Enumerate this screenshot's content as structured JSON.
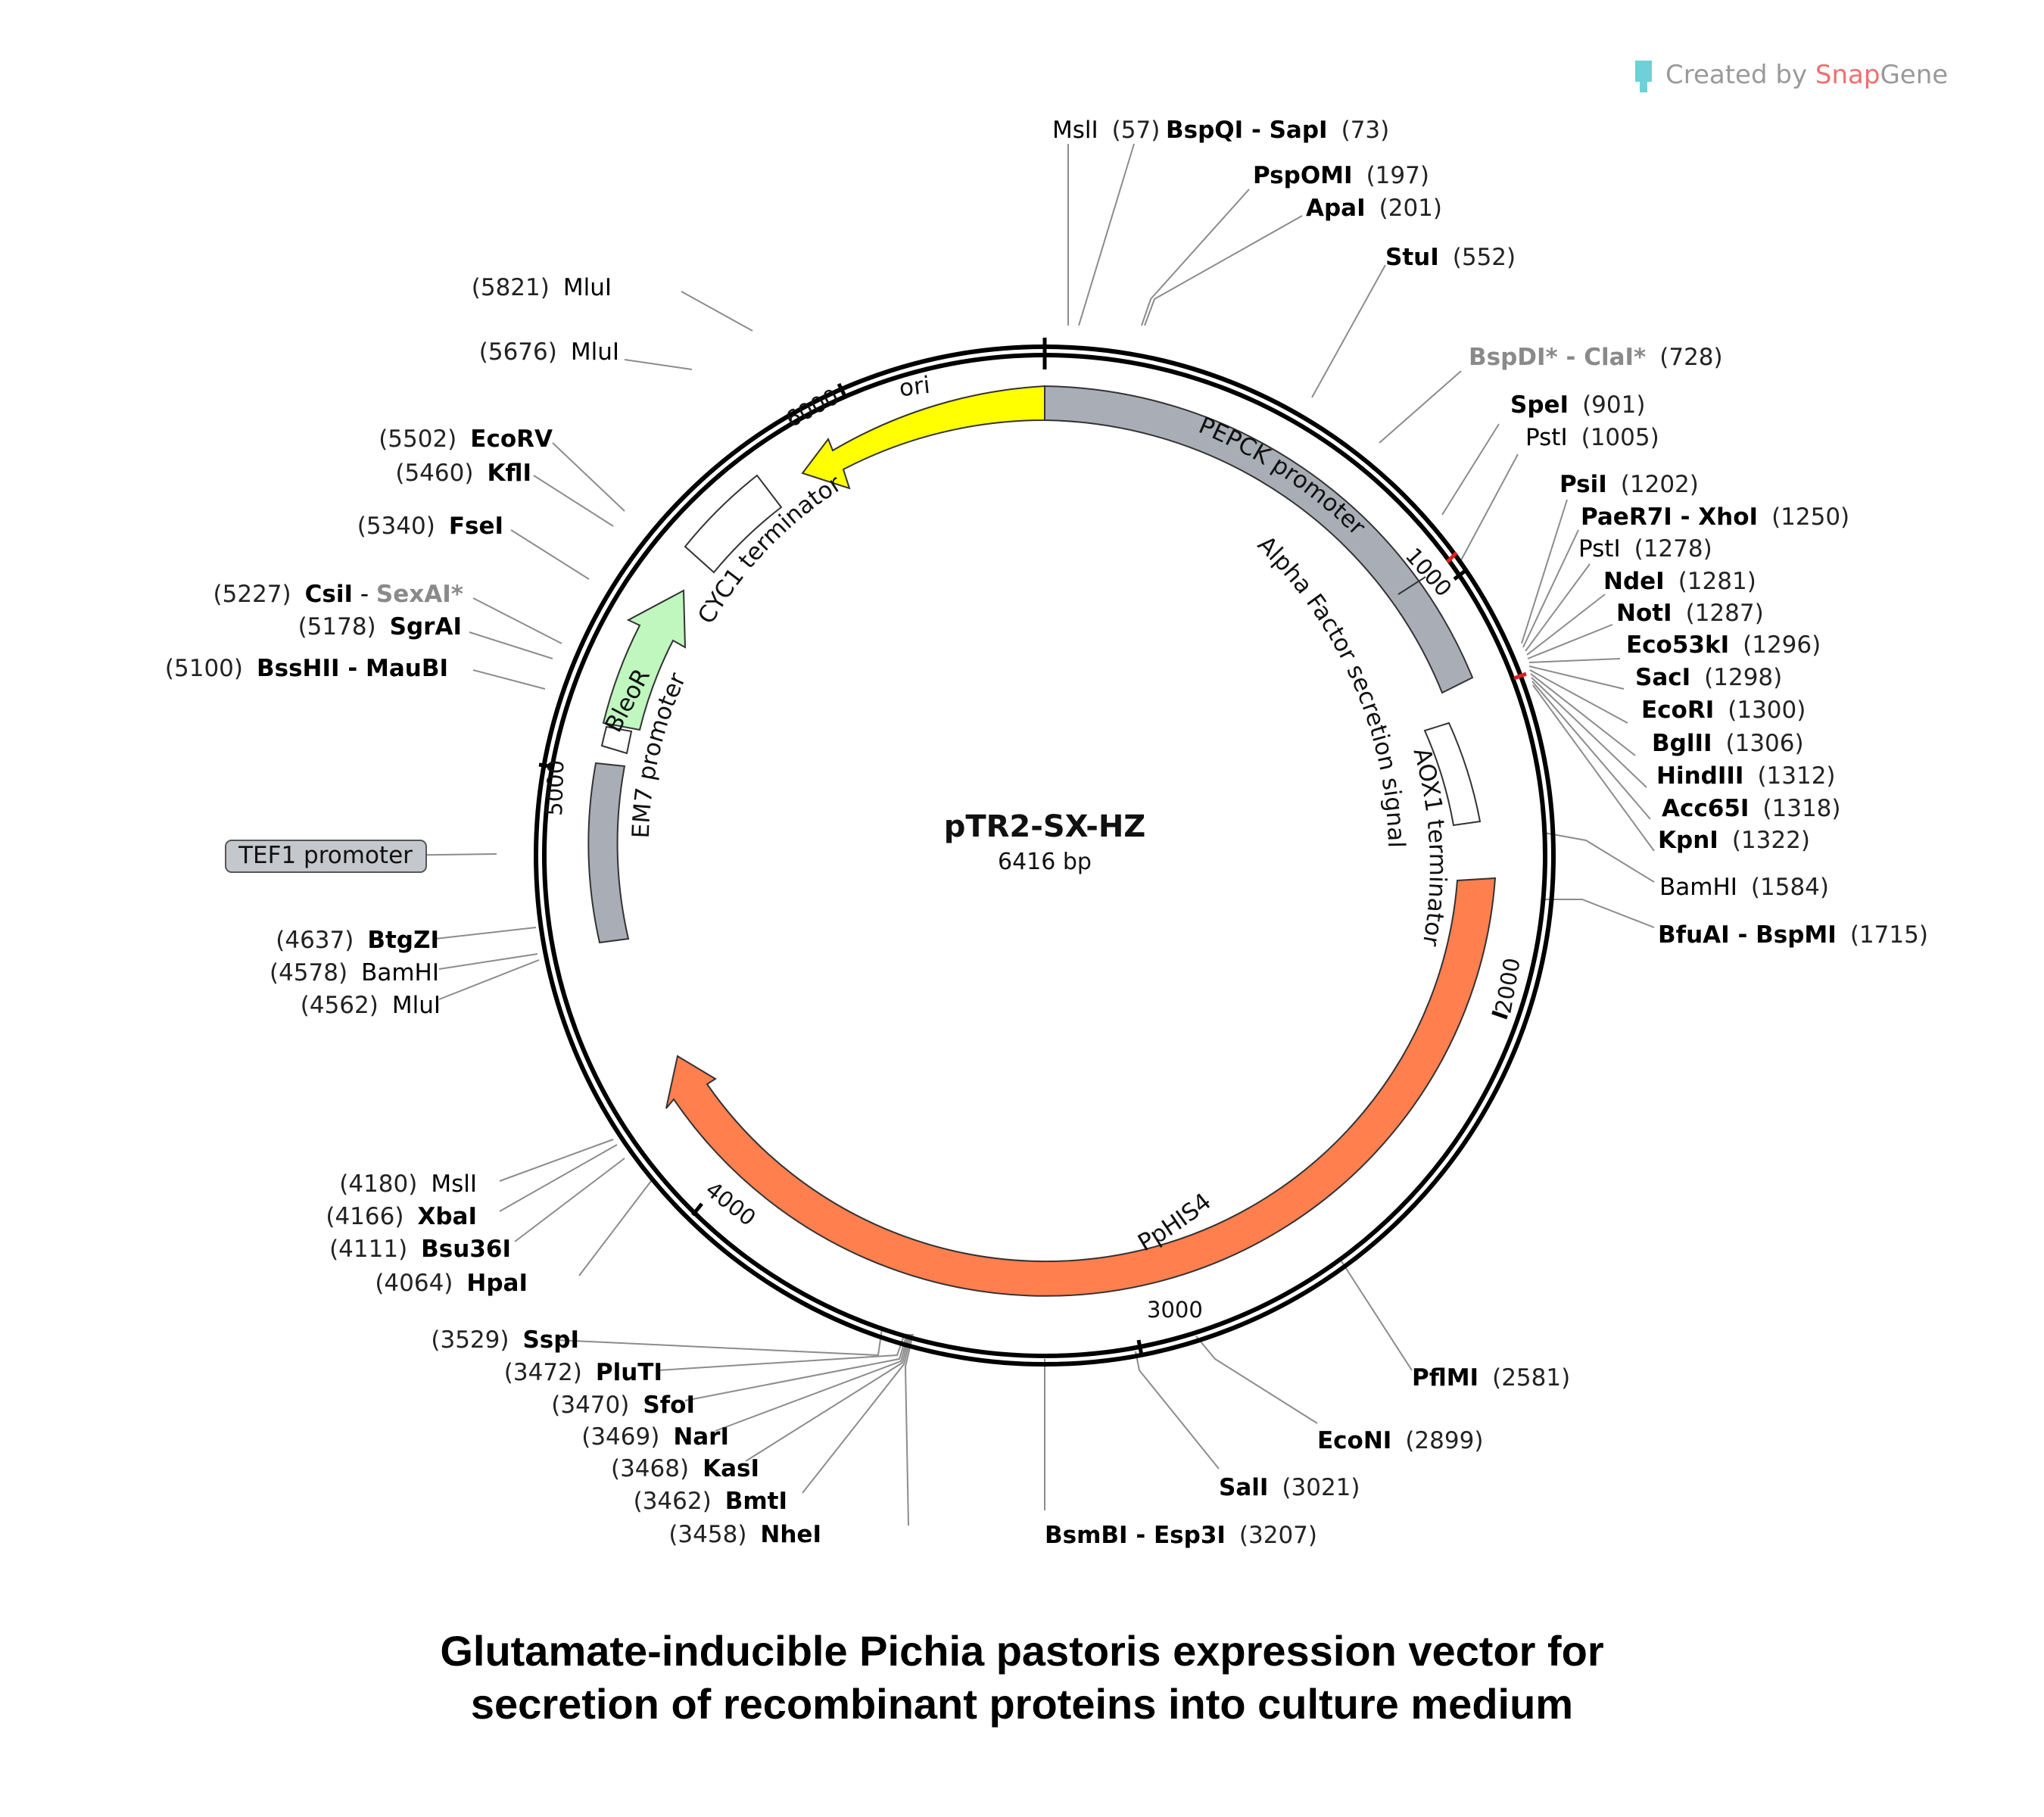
{
  "plasmid": {
    "name": "pTR2-SX-HZ",
    "size_label": "6416 bp",
    "length": 6416
  },
  "brand": {
    "prefix": "Created by ",
    "snap": "Snap",
    "gene": "Gene"
  },
  "caption": {
    "line1": "Glutamate-inducible Pichia pastoris expression vector for",
    "line2": "secretion of recombinant proteins into culture medium"
  },
  "ticks": [
    "1000",
    "2000",
    "3000",
    "4000",
    "5000",
    "6000"
  ],
  "features": {
    "ori": "ori",
    "pepck": "PEPCK promoter",
    "alpha": "Alpha Factor secretion signal",
    "aox1": "AOX1 terminator",
    "his4": "PpHIS4",
    "tef1": "TEF1 promoter",
    "em7": "EM7 promoter",
    "bleor": "BleoR",
    "cyc1": "CYC1 terminator"
  },
  "sites_right": [
    {
      "name": "MslI",
      "pos": "(57)",
      "bold": false
    },
    {
      "name": "BspQI - SapI",
      "pos": "(73)",
      "bold": true
    },
    {
      "name": "PspOMI",
      "pos": "(197)",
      "bold": true
    },
    {
      "name": "ApaI",
      "pos": "(201)",
      "bold": true
    },
    {
      "name": "StuI",
      "pos": "(552)",
      "bold": true
    },
    {
      "name": "BspDI* - ClaI*",
      "pos": "(728)",
      "bold": true,
      "grey": true
    },
    {
      "name": "SpeI",
      "pos": "(901)",
      "bold": true
    },
    {
      "name": "PstI",
      "pos": "(1005)",
      "bold": false
    },
    {
      "name": "PsiI",
      "pos": "(1202)",
      "bold": true
    },
    {
      "name": "PaeR7I - XhoI",
      "pos": "(1250)",
      "bold": true
    },
    {
      "name": "PstI",
      "pos": "(1278)",
      "bold": false
    },
    {
      "name": "NdeI",
      "pos": "(1281)",
      "bold": true
    },
    {
      "name": "NotI",
      "pos": "(1287)",
      "bold": true
    },
    {
      "name": "Eco53kI",
      "pos": "(1296)",
      "bold": true
    },
    {
      "name": "SacI",
      "pos": "(1298)",
      "bold": true
    },
    {
      "name": "EcoRI",
      "pos": "(1300)",
      "bold": true
    },
    {
      "name": "BglII",
      "pos": "(1306)",
      "bold": true
    },
    {
      "name": "HindIII",
      "pos": "(1312)",
      "bold": true
    },
    {
      "name": "Acc65I",
      "pos": "(1318)",
      "bold": true
    },
    {
      "name": "KpnI",
      "pos": "(1322)",
      "bold": true
    },
    {
      "name": "BamHI",
      "pos": "(1584)",
      "bold": false
    },
    {
      "name": "BfuAI - BspMI",
      "pos": "(1715)",
      "bold": true
    },
    {
      "name": "PflMI",
      "pos": "(2581)",
      "bold": true
    },
    {
      "name": "EcoNI",
      "pos": "(2899)",
      "bold": true
    },
    {
      "name": "SalI",
      "pos": "(3021)",
      "bold": true
    },
    {
      "name": "BsmBI - Esp3I",
      "pos": "(3207)",
      "bold": true
    }
  ],
  "sites_left": [
    {
      "name": "MluI",
      "pos": "(5821)",
      "bold": false
    },
    {
      "name": "MluI",
      "pos": "(5676)",
      "bold": false
    },
    {
      "name": "EcoRV",
      "pos": "(5502)",
      "bold": true
    },
    {
      "name": "KflI",
      "pos": "(5460)",
      "bold": true
    },
    {
      "name": "FseI",
      "pos": "(5340)",
      "bold": true
    },
    {
      "name": "CsiI",
      "pos": "(5227)",
      "bold": true,
      "extra": "SexAI*"
    },
    {
      "name": "SgrAI",
      "pos": "(5178)",
      "bold": true
    },
    {
      "name": "BssHII - MauBI",
      "pos": "(5100)",
      "bold": true
    },
    {
      "name": "BtgZI",
      "pos": "(4637)",
      "bold": true
    },
    {
      "name": "BamHI",
      "pos": "(4578)",
      "bold": false
    },
    {
      "name": "MluI",
      "pos": "(4562)",
      "bold": false
    },
    {
      "name": "MslI",
      "pos": "(4180)",
      "bold": false
    },
    {
      "name": "XbaI",
      "pos": "(4166)",
      "bold": true
    },
    {
      "name": "Bsu36I",
      "pos": "(4111)",
      "bold": true
    },
    {
      "name": "HpaI",
      "pos": "(4064)",
      "bold": true
    },
    {
      "name": "SspI",
      "pos": "(3529)",
      "bold": true
    },
    {
      "name": "PluTI",
      "pos": "(3472)",
      "bold": true
    },
    {
      "name": "SfoI",
      "pos": "(3470)",
      "bold": true
    },
    {
      "name": "NarI",
      "pos": "(3469)",
      "bold": true
    },
    {
      "name": "KasI",
      "pos": "(3468)",
      "bold": true
    },
    {
      "name": "BmtI",
      "pos": "(3462)",
      "bold": true
    },
    {
      "name": "NheI",
      "pos": "(3458)",
      "bold": true
    }
  ]
}
